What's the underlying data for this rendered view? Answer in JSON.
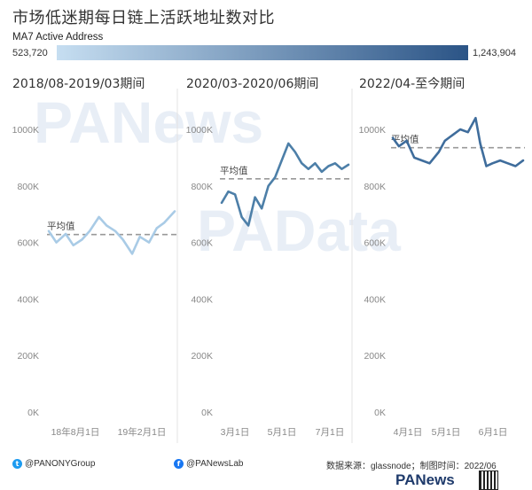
{
  "title": "市场低迷期每日链上活跃地址数对比",
  "legend": {
    "title": "MA7 Active Address",
    "min": "523,720",
    "max": "1,243,904",
    "color_start": "#c6def1",
    "color_end": "#2b5486"
  },
  "watermarks": [
    "PANews",
    "PAData"
  ],
  "chart_data": [
    {
      "type": "line",
      "title": "2018/08-2019/03期间",
      "x_ticks": [
        "18年8月1日",
        "19年2月1日"
      ],
      "y_ticks": [
        "0K",
        "200K",
        "400K",
        "600K",
        "800K",
        "1000K"
      ],
      "ylim": [
        0,
        1000000
      ],
      "color": "#a9cbe6",
      "average": 628000,
      "average_label": "平均值",
      "x": [
        "2018-08-01",
        "2018-08-15",
        "2018-09-01",
        "2018-09-15",
        "2018-10-01",
        "2018-10-15",
        "2018-11-01",
        "2018-11-15",
        "2018-12-01",
        "2018-12-15",
        "2019-01-01",
        "2019-01-15",
        "2019-02-01",
        "2019-02-15",
        "2019-03-01",
        "2019-03-20"
      ],
      "values": [
        640000,
        600000,
        630000,
        590000,
        610000,
        640000,
        690000,
        660000,
        640000,
        610000,
        560000,
        620000,
        600000,
        650000,
        670000,
        710000
      ]
    },
    {
      "type": "line",
      "title": "2020/03-2020/06期间",
      "x_ticks": [
        "3月1日",
        "5月1日",
        "7月1日"
      ],
      "y_ticks": [
        "0K",
        "200K",
        "400K",
        "600K",
        "800K",
        "1000K"
      ],
      "ylim": [
        0,
        1000000
      ],
      "color": "#4d7fa8",
      "average": 825000,
      "average_label": "平均值",
      "x": [
        "2020-03-01",
        "2020-03-08",
        "2020-03-15",
        "2020-03-22",
        "2020-03-29",
        "2020-04-05",
        "2020-04-12",
        "2020-04-19",
        "2020-04-26",
        "2020-05-03",
        "2020-05-10",
        "2020-05-17",
        "2020-05-24",
        "2020-05-31",
        "2020-06-07",
        "2020-06-14",
        "2020-06-21",
        "2020-06-28",
        "2020-07-05",
        "2020-07-12"
      ],
      "values": [
        740000,
        780000,
        770000,
        690000,
        660000,
        760000,
        720000,
        800000,
        830000,
        890000,
        950000,
        920000,
        880000,
        860000,
        880000,
        850000,
        870000,
        880000,
        860000,
        875000
      ]
    },
    {
      "type": "line",
      "title": "2022/04-至今期间",
      "x_ticks": [
        "4月1日",
        "5月1日",
        "6月1日"
      ],
      "y_ticks": [
        "0K",
        "200K",
        "400K",
        "600K",
        "800K",
        "1000K"
      ],
      "ylim": [
        0,
        1000000
      ],
      "color": "#3f6d9c",
      "average": 935000,
      "average_label": "平均值",
      "x": [
        "2022-04-01",
        "2022-04-05",
        "2022-04-10",
        "2022-04-15",
        "2022-04-20",
        "2022-04-25",
        "2022-05-01",
        "2022-05-05",
        "2022-05-10",
        "2022-05-15",
        "2022-05-20",
        "2022-05-25",
        "2022-05-28",
        "2022-06-01",
        "2022-06-05",
        "2022-06-10",
        "2022-06-15",
        "2022-06-20",
        "2022-06-25"
      ],
      "values": [
        970000,
        940000,
        960000,
        900000,
        890000,
        880000,
        920000,
        960000,
        980000,
        1000000,
        990000,
        1040000,
        950000,
        870000,
        880000,
        890000,
        880000,
        870000,
        890000
      ]
    }
  ],
  "footer": {
    "twitter": "@PANONYGroup",
    "facebook": "@PANewsLab",
    "source": "数据来源：glassnode；制图时间：2022/06",
    "logo": "PANews"
  }
}
